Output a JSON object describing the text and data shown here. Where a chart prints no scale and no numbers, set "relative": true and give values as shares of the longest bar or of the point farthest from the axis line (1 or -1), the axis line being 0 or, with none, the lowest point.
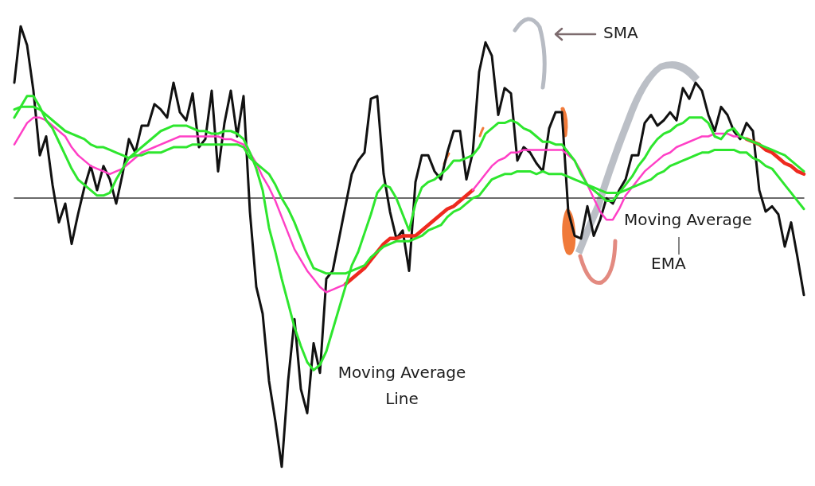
{
  "chart_data": {
    "type": "line",
    "relative": true,
    "marker": "none",
    "line_style": "solid",
    "annotations": [
      "SMA",
      "Moving Average Line",
      "Moving Average",
      "EMA"
    ],
    "categories": [
      null,
      null,
      null,
      null,
      null,
      null,
      null,
      null,
      null,
      null,
      null,
      null,
      null,
      null,
      null,
      null,
      null,
      null,
      null,
      null,
      null,
      null,
      null,
      null,
      null,
      null,
      null,
      null,
      null,
      null,
      null,
      null,
      null,
      null,
      null,
      null,
      null,
      null,
      null,
      null,
      null,
      null,
      null,
      null,
      null,
      null,
      null,
      null,
      null,
      null,
      null,
      null,
      null,
      null,
      null,
      null,
      null,
      null,
      null,
      null,
      null,
      null,
      null,
      null,
      null,
      null,
      null,
      null,
      null,
      null,
      null,
      null,
      null,
      null,
      null,
      null,
      null,
      null,
      null,
      null,
      null,
      null,
      null,
      null,
      null,
      null,
      null,
      null,
      null,
      null,
      null,
      null,
      null,
      null,
      null,
      null,
      null,
      null,
      null,
      null,
      null,
      null,
      null,
      null,
      null,
      null,
      null,
      null,
      null,
      null,
      null,
      null,
      null,
      null,
      null,
      null,
      null,
      null,
      null,
      null,
      null,
      null,
      null,
      null,
      null
    ],
    "series": [
      {
        "color": "#111111",
        "values": [
          0.43,
          0.64,
          0.57,
          0.4,
          0.16,
          0.23,
          0.05,
          -0.09,
          -0.02,
          -0.17,
          -0.06,
          0.04,
          0.12,
          0.03,
          0.12,
          0.07,
          -0.02,
          0.09,
          0.22,
          0.17,
          0.27,
          0.27,
          0.35,
          0.33,
          0.3,
          0.43,
          0.32,
          0.29,
          0.39,
          0.19,
          0.22,
          0.4,
          0.1,
          0.28,
          0.4,
          0.23,
          0.38,
          -0.05,
          -0.33,
          -0.43,
          -0.68,
          -0.83,
          -1.0,
          -0.68,
          -0.45,
          -0.71,
          -0.8,
          -0.54,
          -0.65,
          -0.3,
          -0.27,
          -0.15,
          -0.03,
          0.09,
          0.14,
          0.17,
          0.37,
          0.38,
          0.09,
          -0.05,
          -0.15,
          -0.12,
          -0.27,
          0.06,
          0.16,
          0.16,
          0.1,
          0.07,
          0.17,
          0.25,
          0.25,
          0.07,
          0.17,
          0.47,
          0.58,
          0.53,
          0.31,
          0.41,
          0.39,
          0.14,
          0.19,
          0.17,
          0.13,
          0.1,
          0.26,
          0.32,
          0.32,
          -0.05,
          -0.14,
          -0.15,
          -0.03,
          -0.14,
          -0.08,
          0.0,
          -0.02,
          0.03,
          0.07,
          0.16,
          0.16,
          0.28,
          0.31,
          0.27,
          0.29,
          0.32,
          0.29,
          0.41,
          0.37,
          0.43,
          0.4,
          0.31,
          0.25,
          0.34,
          0.31,
          0.25,
          0.22,
          0.28,
          0.25,
          0.03,
          -0.05,
          -0.03,
          -0.06,
          -0.18,
          -0.09,
          -0.22,
          -0.36
        ]
      },
      {
        "color": "#ee2a1f",
        "values": [
          null,
          null,
          null,
          null,
          null,
          null,
          null,
          null,
          null,
          null,
          null,
          null,
          null,
          null,
          null,
          null,
          null,
          null,
          null,
          null,
          null,
          null,
          null,
          null,
          null,
          null,
          null,
          null,
          null,
          null,
          null,
          null,
          null,
          null,
          null,
          null,
          null,
          null,
          null,
          null,
          null,
          null,
          null,
          null,
          null,
          null,
          null,
          null,
          null,
          null,
          null,
          null,
          -0.32,
          -0.3,
          -0.28,
          -0.26,
          -0.23,
          -0.2,
          -0.17,
          -0.15,
          -0.15,
          -0.14,
          -0.14,
          -0.14,
          -0.12,
          -0.1,
          -0.08,
          -0.06,
          -0.04,
          -0.03,
          -0.01,
          0.01,
          0.03,
          null,
          null,
          null,
          null,
          null,
          null,
          null,
          null,
          null,
          null,
          null,
          null,
          null,
          null,
          null,
          null,
          null,
          null,
          null,
          null,
          null,
          null,
          null,
          null,
          null,
          null,
          null,
          null,
          null,
          null,
          null,
          null,
          null,
          null,
          null,
          null,
          null,
          null,
          null,
          null,
          null,
          null,
          0.22,
          0.21,
          0.2,
          0.18,
          0.17,
          0.15,
          0.13,
          0.12,
          0.1,
          0.09
        ]
      },
      {
        "color": "#ff3fc6",
        "values": [
          0.2,
          0.24,
          0.28,
          0.3,
          0.3,
          0.29,
          0.27,
          0.25,
          0.23,
          0.19,
          0.16,
          0.14,
          0.12,
          0.11,
          0.1,
          0.09,
          0.1,
          0.11,
          0.13,
          0.15,
          0.17,
          0.18,
          0.19,
          0.2,
          0.21,
          0.22,
          0.23,
          0.23,
          0.23,
          0.23,
          0.23,
          0.23,
          0.23,
          0.22,
          0.22,
          0.21,
          0.2,
          0.17,
          0.13,
          0.08,
          0.04,
          -0.01,
          -0.07,
          -0.13,
          -0.19,
          -0.23,
          -0.27,
          -0.3,
          -0.33,
          -0.35,
          -0.34,
          -0.33,
          -0.32,
          null,
          null,
          null,
          null,
          null,
          null,
          null,
          null,
          null,
          null,
          null,
          null,
          null,
          null,
          null,
          null,
          null,
          null,
          null,
          0.03,
          0.06,
          0.09,
          0.12,
          0.14,
          0.15,
          0.17,
          0.17,
          0.18,
          0.18,
          0.18,
          0.18,
          0.18,
          0.18,
          0.18,
          0.16,
          0.14,
          0.1,
          0.05,
          0.0,
          -0.05,
          -0.08,
          -0.08,
          -0.04,
          0.01,
          0.04,
          0.07,
          0.1,
          0.12,
          0.14,
          0.16,
          0.17,
          0.19,
          0.2,
          0.21,
          0.22,
          0.23,
          0.23,
          0.24,
          0.24,
          0.24,
          0.23,
          0.23,
          0.22,
          null,
          null,
          null,
          null,
          null,
          null,
          null,
          null,
          null
        ]
      },
      {
        "color": "#2ee62e",
        "values": [
          0.33,
          0.34,
          0.34,
          0.34,
          0.33,
          0.31,
          0.29,
          0.27,
          0.25,
          0.24,
          0.23,
          0.22,
          0.2,
          0.19,
          0.19,
          0.18,
          0.17,
          0.16,
          0.15,
          0.16,
          0.16,
          0.17,
          0.17,
          0.17,
          0.18,
          0.19,
          0.19,
          0.19,
          0.2,
          0.2,
          0.2,
          0.2,
          0.2,
          0.2,
          0.2,
          0.2,
          0.19,
          0.15,
          0.13,
          0.11,
          0.09,
          0.05,
          0.0,
          -0.04,
          -0.09,
          -0.15,
          -0.21,
          -0.26,
          -0.27,
          -0.28,
          -0.28,
          -0.28,
          -0.28,
          -0.27,
          -0.26,
          -0.25,
          -0.22,
          -0.2,
          -0.18,
          -0.17,
          -0.16,
          -0.16,
          -0.16,
          -0.15,
          -0.14,
          -0.12,
          -0.11,
          -0.1,
          -0.07,
          -0.05,
          -0.04,
          -0.02,
          0.0,
          0.01,
          0.04,
          0.07,
          0.08,
          0.09,
          0.09,
          0.1,
          0.1,
          0.1,
          0.09,
          0.1,
          0.09,
          0.09,
          0.09,
          0.08,
          0.07,
          0.06,
          0.05,
          0.04,
          0.03,
          0.02,
          0.02,
          0.02,
          0.03,
          0.04,
          0.05,
          0.06,
          0.07,
          0.09,
          0.1,
          0.12,
          0.13,
          0.14,
          0.15,
          0.16,
          0.17,
          0.17,
          0.18,
          0.18,
          0.18,
          0.18,
          0.17,
          0.17,
          0.15,
          0.14,
          0.12,
          0.11,
          0.08,
          0.05,
          0.02,
          -0.01,
          -0.04
        ]
      },
      {
        "color": "#2ee62e",
        "values": [
          0.3,
          0.34,
          0.38,
          0.38,
          0.34,
          0.29,
          0.26,
          0.21,
          0.16,
          0.11,
          0.07,
          0.05,
          0.03,
          0.01,
          0.01,
          0.02,
          0.07,
          0.11,
          0.15,
          0.17,
          0.19,
          0.21,
          0.23,
          0.25,
          0.26,
          0.27,
          0.27,
          0.27,
          0.26,
          0.25,
          0.25,
          0.24,
          0.24,
          0.25,
          0.25,
          0.24,
          0.22,
          0.17,
          0.11,
          0.03,
          -0.11,
          -0.2,
          -0.3,
          -0.39,
          -0.48,
          -0.55,
          -0.61,
          -0.64,
          -0.62,
          -0.57,
          -0.49,
          -0.41,
          -0.33,
          -0.25,
          -0.2,
          -0.13,
          -0.06,
          0.02,
          0.05,
          0.04,
          0.0,
          -0.06,
          -0.12,
          -0.02,
          0.04,
          0.06,
          0.07,
          0.09,
          0.11,
          0.14,
          0.14,
          0.15,
          0.16,
          0.19,
          0.24,
          0.26,
          0.28,
          0.28,
          0.29,
          0.28,
          0.26,
          0.25,
          0.23,
          0.21,
          0.21,
          0.2,
          0.2,
          0.17,
          0.14,
          0.09,
          0.05,
          0.03,
          0.01,
          -0.01,
          -0.01,
          0.02,
          0.05,
          0.08,
          0.12,
          0.15,
          0.19,
          0.22,
          0.24,
          0.25,
          0.27,
          0.28,
          0.3,
          0.3,
          0.3,
          0.28,
          0.23,
          0.22,
          0.25,
          0.26,
          0.23,
          0.22,
          0.21,
          0.2,
          0.19,
          0.18,
          0.17,
          0.16,
          0.14,
          0.12,
          0.1
        ]
      }
    ]
  }
}
